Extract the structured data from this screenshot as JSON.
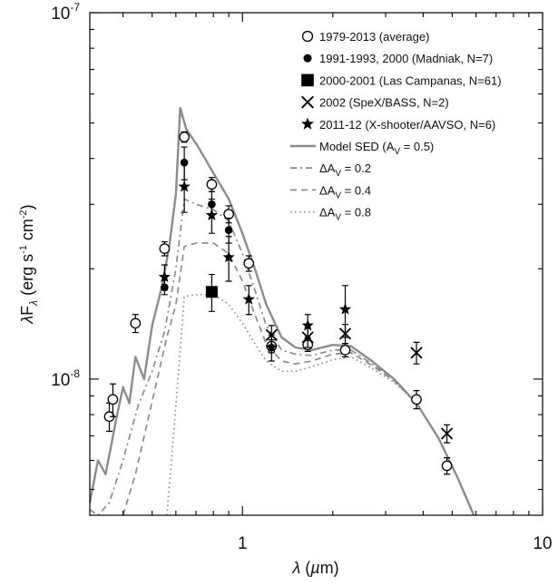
{
  "chart_data": {
    "type": "scatter",
    "title": "",
    "xlabel": "λ (µm)",
    "ylabel": "λF_λ (erg s^-1 cm^-2)",
    "xscale": "log",
    "yscale": "log",
    "xlim": [
      0.31,
      10
    ],
    "ylim": [
      4.25e-09,
      1e-07
    ],
    "x_ticks": [
      {
        "value": 1,
        "label": "1"
      },
      {
        "value": 10,
        "label": "10"
      }
    ],
    "y_ticks": [
      {
        "value": 1e-08,
        "label": "10",
        "exp": "-8"
      },
      {
        "value": 1e-07,
        "label": "10",
        "exp": "-7"
      }
    ],
    "grid": false,
    "legend_position": "top-right",
    "colors": {
      "model": "#8c8c8c",
      "data": "#000000"
    },
    "series": [
      {
        "name": "1979-2013 (average)",
        "marker": "open-circle",
        "points": [
          {
            "x": 0.36,
            "y": 7.9e-09,
            "err": 7e-10
          },
          {
            "x": 0.37,
            "y": 8.8e-09,
            "err": 9e-10
          },
          {
            "x": 0.44,
            "y": 1.42e-08,
            "err": 8e-10
          },
          {
            "x": 0.55,
            "y": 2.27e-08,
            "err": 1e-09
          },
          {
            "x": 0.64,
            "y": 4.58e-08,
            "err": 1.5e-09
          },
          {
            "x": 0.79,
            "y": 3.4e-08,
            "err": 1.5e-09
          },
          {
            "x": 0.9,
            "y": 2.82e-08,
            "err": 1.5e-09
          },
          {
            "x": 1.05,
            "y": 2.07e-08,
            "err": 1e-09
          },
          {
            "x": 1.25,
            "y": 1.23e-08,
            "err": 5e-10
          },
          {
            "x": 1.65,
            "y": 1.24e-08,
            "err": 5e-10
          },
          {
            "x": 2.2,
            "y": 1.2e-08,
            "err": 5e-10
          },
          {
            "x": 3.8,
            "y": 8.8e-09,
            "err": 5e-10
          },
          {
            "x": 4.8,
            "y": 5.8e-09,
            "err": 3e-10
          }
        ]
      },
      {
        "name": "1991-1993, 2000 (Madniak, N=7)",
        "marker": "filled-circle",
        "points": [
          {
            "x": 0.55,
            "y": 1.78e-08,
            "err": 8e-10
          },
          {
            "x": 0.64,
            "y": 3.9e-08,
            "err": 4e-09
          },
          {
            "x": 0.79,
            "y": 3e-08,
            "err": 2.5e-09
          },
          {
            "x": 0.9,
            "y": 2.55e-08,
            "err": 2e-09
          }
        ]
      },
      {
        "name": "2000-2001 (Las Campanas, N=61)",
        "marker": "filled-square",
        "points": [
          {
            "x": 0.79,
            "y": 1.73e-08,
            "err": 2e-09
          }
        ]
      },
      {
        "name": "2002 (SpeX/BASS, N=2)",
        "marker": "cross",
        "points": [
          {
            "x": 1.25,
            "y": 1.32e-08,
            "err": 8e-10
          },
          {
            "x": 1.65,
            "y": 1.3e-08,
            "err": 8e-10
          },
          {
            "x": 2.2,
            "y": 1.33e-08,
            "err": 8e-10
          },
          {
            "x": 3.8,
            "y": 1.18e-08,
            "err": 8e-10
          },
          {
            "x": 4.8,
            "y": 7.1e-09,
            "err": 4e-10
          }
        ]
      },
      {
        "name": "2011-12 (X-shooter/AAVSO, N=6)",
        "marker": "star",
        "points": [
          {
            "x": 0.55,
            "y": 1.9e-08,
            "err": 1.5e-09
          },
          {
            "x": 0.64,
            "y": 3.35e-08,
            "err": 5e-09
          },
          {
            "x": 0.79,
            "y": 2.8e-08,
            "err": 3e-09
          },
          {
            "x": 0.9,
            "y": 2.15e-08,
            "err": 3e-09
          },
          {
            "x": 1.05,
            "y": 1.65e-08,
            "err": 1.5e-09
          },
          {
            "x": 1.25,
            "y": 1.22e-08,
            "err": 1e-09
          },
          {
            "x": 1.65,
            "y": 1.4e-08,
            "err": 1e-09
          },
          {
            "x": 2.2,
            "y": 1.55e-08,
            "err": 2.5e-09
          }
        ]
      }
    ],
    "models": [
      {
        "name": "Model SED (A_V = 0.5)",
        "style": "solid",
        "points": [
          [
            0.31,
            4.6e-09
          ],
          [
            0.33,
            6e-09
          ],
          [
            0.35,
            5.5e-09
          ],
          [
            0.38,
            7.8e-09
          ],
          [
            0.4,
            9.5e-09
          ],
          [
            0.42,
            8.6e-09
          ],
          [
            0.44,
            1.15e-08
          ],
          [
            0.47,
            1e-08
          ],
          [
            0.5,
            1.4e-08
          ],
          [
            0.54,
            1.8e-08
          ],
          [
            0.57,
            2.3e-08
          ],
          [
            0.6,
            3.2e-08
          ],
          [
            0.62,
            5.5e-08
          ],
          [
            0.65,
            4.8e-08
          ],
          [
            0.7,
            4.4e-08
          ],
          [
            0.75,
            4e-08
          ],
          [
            0.8,
            3.65e-08
          ],
          [
            0.9,
            3.1e-08
          ],
          [
            1.0,
            2.5e-08
          ],
          [
            1.1,
            2e-08
          ],
          [
            1.2,
            1.6e-08
          ],
          [
            1.35,
            1.3e-08
          ],
          [
            1.5,
            1.22e-08
          ],
          [
            1.7,
            1.2e-08
          ],
          [
            2.0,
            1.24e-08
          ],
          [
            2.3,
            1.23e-08
          ],
          [
            2.7,
            1.12e-08
          ],
          [
            3.2,
            1e-08
          ],
          [
            3.8,
            8.6e-09
          ],
          [
            4.5,
            6.9e-09
          ],
          [
            5.2,
            5.4e-09
          ],
          [
            5.9,
            4.25e-09
          ]
        ]
      },
      {
        "name": "ΔA_V = 0.2",
        "style": "dashdot",
        "points": [
          [
            0.31,
            4.4e-09
          ],
          [
            0.33,
            4.25e-09
          ],
          [
            0.36,
            4.6e-09
          ],
          [
            0.4,
            6e-09
          ],
          [
            0.45,
            8.5e-09
          ],
          [
            0.5,
            1.05e-08
          ],
          [
            0.55,
            1.35e-08
          ],
          [
            0.6,
            2e-08
          ],
          [
            0.64,
            3.1e-08
          ],
          [
            0.7,
            3e-08
          ],
          [
            0.8,
            2.9e-08
          ],
          [
            0.9,
            2.7e-08
          ],
          [
            1.0,
            2.2e-08
          ],
          [
            1.1,
            1.75e-08
          ],
          [
            1.2,
            1.4e-08
          ],
          [
            1.35,
            1.2e-08
          ],
          [
            1.5,
            1.17e-08
          ],
          [
            1.7,
            1.16e-08
          ],
          [
            2.0,
            1.2e-08
          ],
          [
            2.3,
            1.2e-08
          ],
          [
            2.7,
            1.1e-08
          ],
          [
            3.2,
            1e-08
          ],
          [
            3.8,
            8.6e-09
          ]
        ]
      },
      {
        "name": "ΔA_V = 0.4",
        "style": "dashed",
        "points": [
          [
            0.4,
            4.25e-09
          ],
          [
            0.44,
            5.5e-09
          ],
          [
            0.48,
            7.5e-09
          ],
          [
            0.52,
            1e-08
          ],
          [
            0.56,
            1.3e-08
          ],
          [
            0.6,
            1.6e-08
          ],
          [
            0.64,
            2.3e-08
          ],
          [
            0.7,
            2.35e-08
          ],
          [
            0.8,
            2.35e-08
          ],
          [
            0.9,
            2.2e-08
          ],
          [
            1.0,
            1.85e-08
          ],
          [
            1.1,
            1.5e-08
          ],
          [
            1.2,
            1.25e-08
          ],
          [
            1.35,
            1.12e-08
          ],
          [
            1.5,
            1.1e-08
          ],
          [
            1.7,
            1.12e-08
          ],
          [
            2.0,
            1.17e-08
          ],
          [
            2.3,
            1.18e-08
          ],
          [
            2.7,
            1.09e-08
          ],
          [
            3.2,
            9.9e-09
          ],
          [
            3.8,
            8.6e-09
          ]
        ]
      },
      {
        "name": "ΔA_V = 0.8",
        "style": "dotted",
        "points": [
          [
            0.56,
            4.25e-09
          ],
          [
            0.58,
            6e-09
          ],
          [
            0.6,
            8.5e-09
          ],
          [
            0.62,
            1.2e-08
          ],
          [
            0.64,
            1.68e-08
          ],
          [
            0.7,
            1.7e-08
          ],
          [
            0.8,
            1.7e-08
          ],
          [
            0.9,
            1.6e-08
          ],
          [
            1.0,
            1.42e-08
          ],
          [
            1.1,
            1.25e-08
          ],
          [
            1.2,
            1.12e-08
          ],
          [
            1.35,
            1.05e-08
          ],
          [
            1.5,
            1.05e-08
          ],
          [
            1.7,
            1.08e-08
          ],
          [
            2.0,
            1.13e-08
          ],
          [
            2.3,
            1.15e-08
          ],
          [
            2.7,
            1.07e-08
          ],
          [
            3.2,
            9.8e-09
          ],
          [
            3.8,
            8.6e-09
          ]
        ]
      }
    ],
    "legend": [
      {
        "label": "1979-2013 (average)",
        "marker": "open-circle"
      },
      {
        "label": "1991-1993, 2000 (Madniak, N=7)",
        "marker": "filled-circle"
      },
      {
        "label": "2000-2001 (Las Campanas, N=61)",
        "marker": "filled-square"
      },
      {
        "label": "2002 (SpeX/BASS, N=2)",
        "marker": "cross"
      },
      {
        "label": "2011-12 (X-shooter/AAVSO, N=6)",
        "marker": "star"
      },
      {
        "label": "Model SED (A_V = 0.5)",
        "line": "solid"
      },
      {
        "label": "ΔA_V = 0.2",
        "line": "dashdot"
      },
      {
        "label": "ΔA_V = 0.4",
        "line": "dashed"
      },
      {
        "label": "ΔA_V = 0.8",
        "line": "dotted"
      }
    ]
  }
}
